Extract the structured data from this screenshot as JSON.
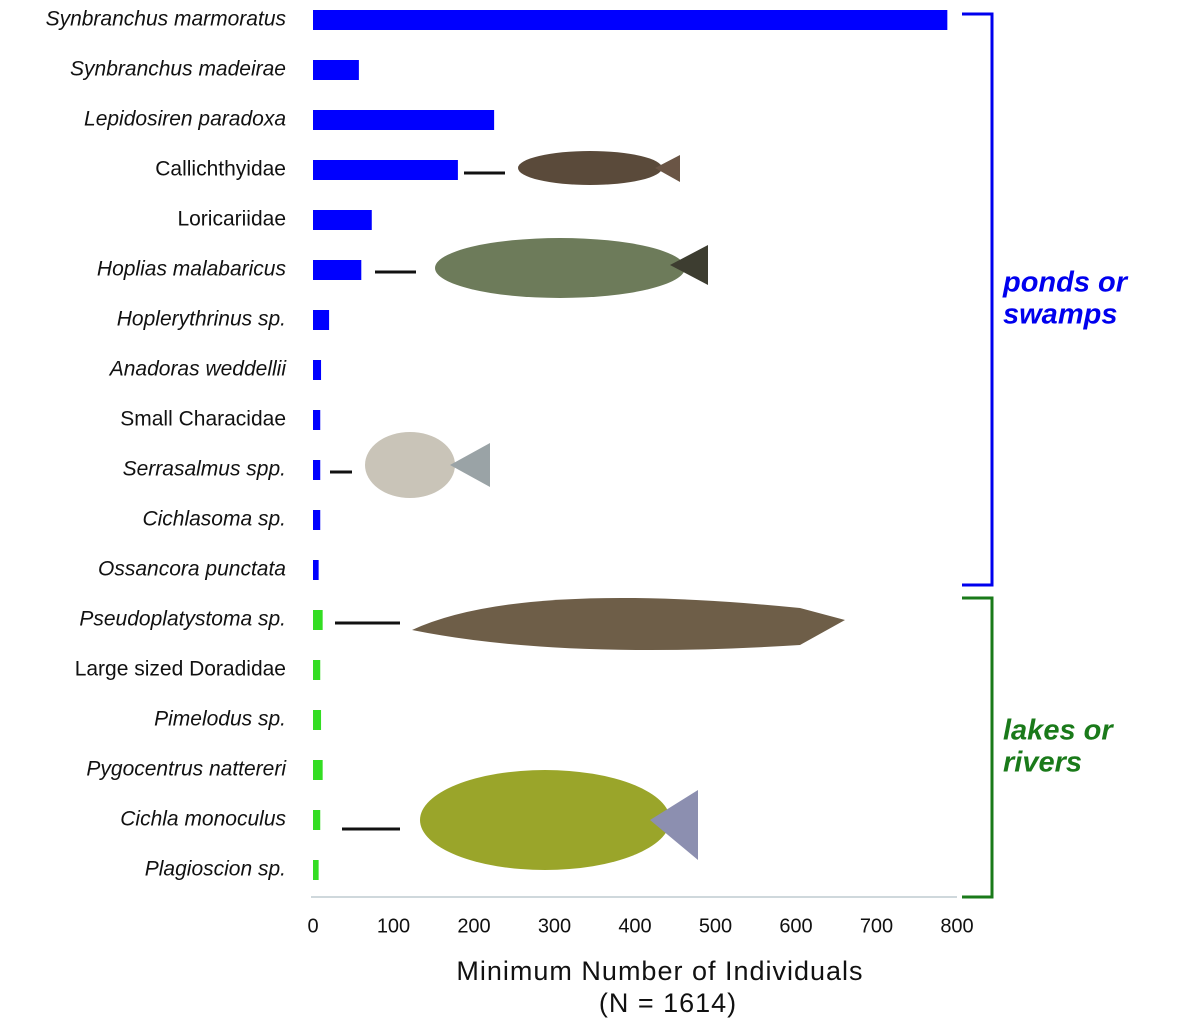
{
  "chart_data": {
    "type": "bar",
    "orientation": "horizontal",
    "categories": [
      "Synbranchus marmoratus",
      "Synbranchus madeirae",
      "Lepidosiren paradoxa",
      "Callichthyidae",
      "Loricariidae",
      "Hoplias malabaricus",
      "Hoplerythrinus sp.",
      "Anadoras weddellii",
      "Small Characidae",
      "Serrasalmus spp.",
      "Cichlasoma sp.",
      "Ossancora punctata",
      "Pseudoplatystoma sp.",
      "Large sized Doradidae",
      "Pimelodus sp.",
      "Pygocentrus nattereri",
      "Cichla monoculus",
      "Plagioscion sp."
    ],
    "series": [
      {
        "name": "ponds or swamps",
        "color": "#0000ff",
        "values": [
          788,
          57,
          225,
          180,
          73,
          60,
          20,
          10,
          9,
          9,
          9,
          7,
          null,
          null,
          null,
          null,
          null,
          null
        ]
      },
      {
        "name": "lakes or rivers",
        "color": "#33dd22",
        "values": [
          null,
          null,
          null,
          null,
          null,
          null,
          null,
          null,
          null,
          null,
          null,
          null,
          12,
          9,
          10,
          12,
          9,
          7
        ]
      }
    ],
    "legend_colors": [
      "#0000ee",
      "#1a7a1a"
    ],
    "xlabel": "Minimum Number of Individuals",
    "xlabel_note": "(N = 1614)",
    "xlim": [
      0,
      800
    ],
    "xticks": [
      0,
      100,
      200,
      300,
      400,
      500,
      600,
      700,
      800
    ],
    "grid": false
  }
}
